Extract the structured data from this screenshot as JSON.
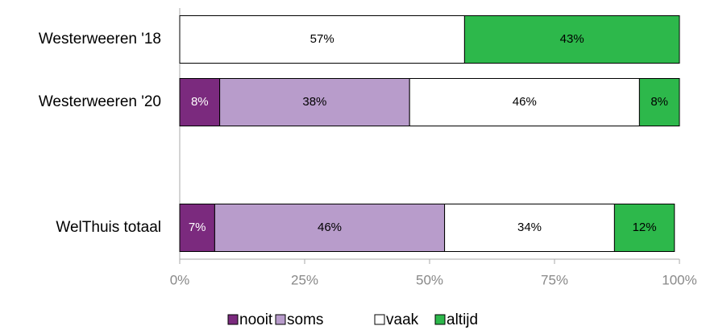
{
  "chart_data": {
    "type": "stacked_barh",
    "categories": [
      "Westerweeren '18",
      "Westerweeren '20",
      null,
      "WelThuis totaal"
    ],
    "series": [
      {
        "name": "nooit",
        "color": "#7b2a7e",
        "values": [
          null,
          8,
          null,
          7
        ],
        "value_labels": [
          null,
          "8%",
          null,
          "7%"
        ]
      },
      {
        "name": "soms",
        "color": "#b89ccb",
        "values": [
          null,
          38,
          null,
          46
        ],
        "value_labels": [
          null,
          "38%",
          null,
          "46%"
        ]
      },
      {
        "name": "vaak",
        "color": "#ffffff",
        "values": [
          57,
          46,
          null,
          34
        ],
        "value_labels": [
          "57%",
          "46%",
          null,
          "34%"
        ]
      },
      {
        "name": "altijd",
        "color": "#2db84b",
        "values": [
          43,
          8,
          null,
          12
        ],
        "value_labels": [
          "43%",
          "8%",
          null,
          "12%"
        ]
      }
    ],
    "xlim": [
      0,
      100
    ],
    "xticks": [
      {
        "value": 0,
        "label": "0%"
      },
      {
        "value": 25,
        "label": "25%"
      },
      {
        "value": 50,
        "label": "50%"
      },
      {
        "value": 75,
        "label": "75%"
      },
      {
        "value": 100,
        "label": "100%"
      }
    ],
    "legend": "bottom"
  }
}
